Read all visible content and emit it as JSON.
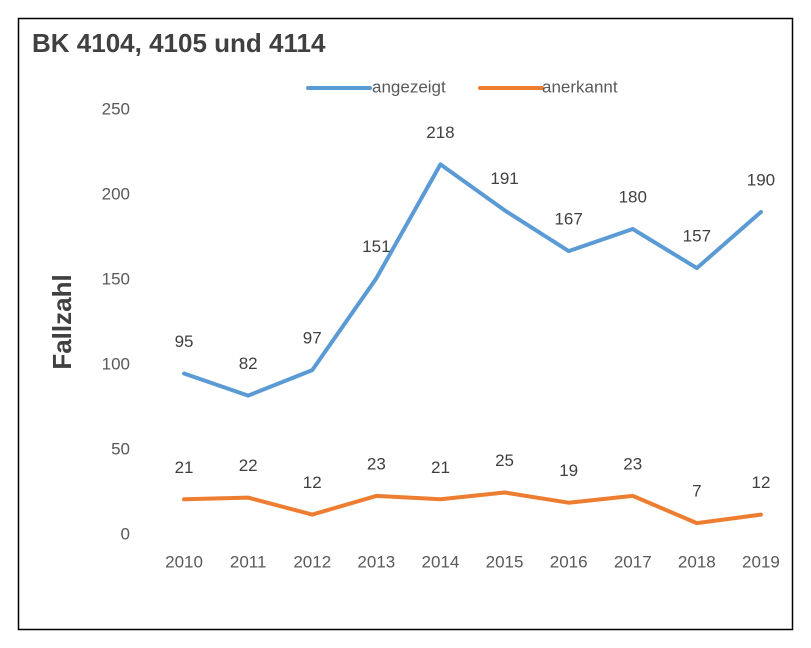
{
  "chart_data": {
    "type": "line",
    "title": "BK 4104, 4105 und 4114",
    "ylabel": "Fallzahl",
    "categories": [
      "2010",
      "2011",
      "2012",
      "2013",
      "2014",
      "2015",
      "2016",
      "2017",
      "2018",
      "2019"
    ],
    "series": [
      {
        "name": "angezeigt",
        "color": "#5b9bd5",
        "values": [
          95,
          82,
          97,
          151,
          218,
          191,
          167,
          180,
          157,
          190
        ]
      },
      {
        "name": "anerkannt",
        "color": "#ed7d31",
        "values": [
          21,
          22,
          12,
          23,
          21,
          25,
          19,
          23,
          7,
          12
        ]
      }
    ],
    "ylim": [
      0,
      250
    ],
    "yticks": [
      0,
      50,
      100,
      150,
      200,
      250
    ],
    "grid": false,
    "legend": "top",
    "data_labels": true
  }
}
